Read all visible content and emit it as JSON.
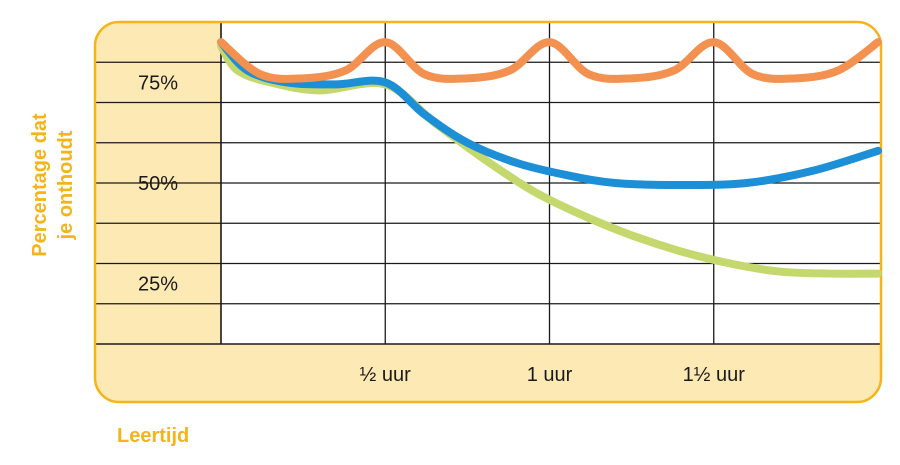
{
  "chart_data": {
    "type": "line",
    "title": "",
    "xlabel": "Leertijd",
    "ylabel_lines": [
      "Percentage dat",
      "je onthoudt"
    ],
    "x_tick_labels": [
      {
        "x": 0.5,
        "label": "½ uur"
      },
      {
        "x": 1.0,
        "label": "1 uur"
      },
      {
        "x": 1.5,
        "label": "1½ uur"
      }
    ],
    "y_tick_labels": [
      {
        "y": 75,
        "label": "75%"
      },
      {
        "y": 50,
        "label": "50%"
      },
      {
        "y": 25,
        "label": "25%"
      }
    ],
    "xlim": [
      0,
      2.0
    ],
    "ylim": [
      10,
      90
    ],
    "grid": true,
    "series": [
      {
        "color": "#f39150",
        "points": [
          [
            0,
            85
          ],
          [
            0.12,
            77
          ],
          [
            0.25,
            76
          ],
          [
            0.38,
            78
          ],
          [
            0.5,
            85
          ],
          [
            0.62,
            77
          ],
          [
            0.75,
            76
          ],
          [
            0.88,
            78
          ],
          [
            1.0,
            85
          ],
          [
            1.12,
            77
          ],
          [
            1.25,
            76
          ],
          [
            1.38,
            78
          ],
          [
            1.5,
            85
          ],
          [
            1.62,
            77
          ],
          [
            1.75,
            76
          ],
          [
            1.88,
            78
          ],
          [
            2.0,
            85
          ]
        ]
      },
      {
        "color": "#1d8fd6",
        "points": [
          [
            0,
            85
          ],
          [
            0.08,
            78
          ],
          [
            0.2,
            75
          ],
          [
            0.35,
            74.5
          ],
          [
            0.5,
            75
          ],
          [
            0.62,
            67
          ],
          [
            0.75,
            60
          ],
          [
            0.9,
            55
          ],
          [
            1.05,
            52
          ],
          [
            1.2,
            50
          ],
          [
            1.4,
            49.5
          ],
          [
            1.6,
            50
          ],
          [
            1.8,
            53
          ],
          [
            2.0,
            58
          ]
        ]
      },
      {
        "color": "#c4d86e",
        "points": [
          [
            0,
            84
          ],
          [
            0.05,
            78
          ],
          [
            0.15,
            75
          ],
          [
            0.3,
            73
          ],
          [
            0.5,
            74.5
          ],
          [
            0.65,
            65
          ],
          [
            0.8,
            56
          ],
          [
            0.95,
            48
          ],
          [
            1.1,
            42
          ],
          [
            1.25,
            37
          ],
          [
            1.4,
            33
          ],
          [
            1.55,
            30
          ],
          [
            1.7,
            28
          ],
          [
            1.85,
            27.5
          ],
          [
            2.0,
            27.5
          ]
        ]
      }
    ]
  },
  "colors": {
    "frame": "#f4b41a",
    "panel_fill": "#fde9b4",
    "grid": "#1a1a1a",
    "axis_title": "#f4b41a"
  }
}
